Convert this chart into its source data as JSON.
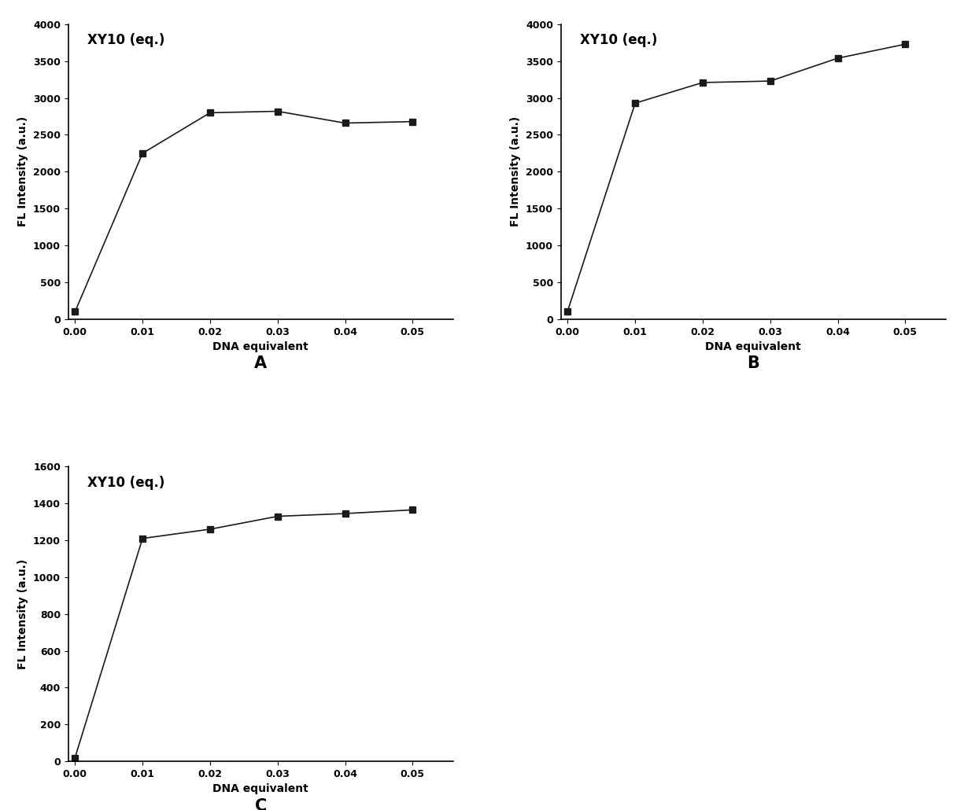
{
  "subplot_A": {
    "x": [
      0.0,
      0.01,
      0.02,
      0.03,
      0.04,
      0.05
    ],
    "y": [
      100,
      2250,
      2800,
      2820,
      2660,
      2680
    ],
    "ylabel": "FL Intensity (a.u.)",
    "xlabel": "DNA equivalent",
    "annotation": "XY10 (eq.)",
    "label": "A",
    "ylim": [
      0,
      4000
    ],
    "yticks": [
      0,
      500,
      1000,
      1500,
      2000,
      2500,
      3000,
      3500,
      4000
    ],
    "xticks": [
      0.0,
      0.01,
      0.02,
      0.03,
      0.04,
      0.05
    ],
    "xlim": [
      -0.001,
      0.056
    ]
  },
  "subplot_B": {
    "x": [
      0.0,
      0.01,
      0.02,
      0.03,
      0.04,
      0.05
    ],
    "y": [
      110,
      2930,
      3210,
      3230,
      3540,
      3730
    ],
    "ylabel": "FL Intensity (a.u.)",
    "xlabel": "DNA equivalent",
    "annotation": "XY10 (eq.)",
    "label": "B",
    "ylim": [
      0,
      4000
    ],
    "yticks": [
      0,
      500,
      1000,
      1500,
      2000,
      2500,
      3000,
      3500,
      4000
    ],
    "xticks": [
      0.0,
      0.01,
      0.02,
      0.03,
      0.04,
      0.05
    ],
    "xlim": [
      -0.001,
      0.056
    ]
  },
  "subplot_C": {
    "x": [
      0.0,
      0.01,
      0.02,
      0.03,
      0.04,
      0.05
    ],
    "y": [
      20,
      1210,
      1260,
      1330,
      1345,
      1365
    ],
    "ylabel": "FL Intensity (a.u.)",
    "xlabel": "DNA equivalent",
    "annotation": "XY10 (eq.)",
    "label": "C",
    "ylim": [
      0,
      1600
    ],
    "yticks": [
      0,
      200,
      400,
      600,
      800,
      1000,
      1200,
      1400,
      1600
    ],
    "xticks": [
      0.0,
      0.01,
      0.02,
      0.03,
      0.04,
      0.05
    ],
    "xlim": [
      -0.001,
      0.056
    ]
  },
  "line_color": "#1a1a1a",
  "marker": "s",
  "marker_size": 6,
  "line_width": 1.2,
  "font_size_annotation": 12,
  "font_size_axis_label": 10,
  "font_size_tick": 9,
  "font_size_letter": 15,
  "background_color": "#ffffff"
}
